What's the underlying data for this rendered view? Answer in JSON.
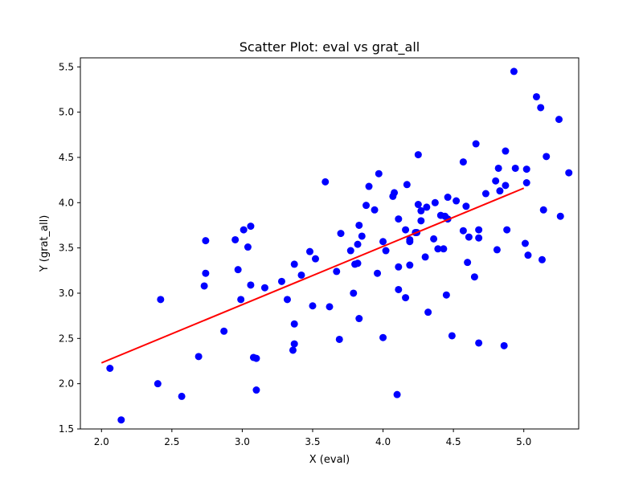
{
  "chart_data": {
    "type": "scatter",
    "title": "Scatter Plot: eval vs grat_all",
    "xlabel": "X (eval)",
    "ylabel": "Y (grat_all)",
    "xlim": [
      1.85,
      5.39
    ],
    "ylim": [
      1.5,
      5.6
    ],
    "x_ticks": [
      2.0,
      2.5,
      3.0,
      3.5,
      4.0,
      4.5,
      5.0
    ],
    "x_tick_labels": [
      "2.0",
      "2.5",
      "3.0",
      "3.5",
      "4.0",
      "4.5",
      "5.0"
    ],
    "y_ticks": [
      1.5,
      2.0,
      2.5,
      3.0,
      3.5,
      4.0,
      4.5,
      5.0,
      5.5
    ],
    "y_tick_labels": [
      "1.5",
      "2.0",
      "2.5",
      "3.0",
      "3.5",
      "4.0",
      "4.5",
      "5.0",
      "5.5"
    ],
    "grid": false,
    "point_color": "#0000ff",
    "line_color": "#ff0000",
    "regression_line": {
      "x": [
        2.0,
        5.0
      ],
      "y": [
        2.23,
        4.16
      ]
    },
    "points": [
      [
        2.06,
        2.17
      ],
      [
        2.14,
        1.6
      ],
      [
        2.4,
        2.0
      ],
      [
        2.42,
        2.93
      ],
      [
        2.57,
        1.86
      ],
      [
        2.69,
        2.3
      ],
      [
        2.73,
        3.08
      ],
      [
        2.74,
        3.22
      ],
      [
        2.74,
        3.58
      ],
      [
        2.87,
        2.58
      ],
      [
        2.95,
        3.59
      ],
      [
        2.97,
        3.26
      ],
      [
        2.99,
        2.93
      ],
      [
        3.01,
        3.7
      ],
      [
        3.04,
        3.51
      ],
      [
        3.06,
        3.09
      ],
      [
        3.06,
        3.74
      ],
      [
        3.08,
        2.29
      ],
      [
        3.1,
        2.28
      ],
      [
        3.1,
        1.93
      ],
      [
        3.16,
        3.06
      ],
      [
        3.28,
        3.13
      ],
      [
        3.32,
        2.93
      ],
      [
        3.36,
        2.37
      ],
      [
        3.37,
        2.44
      ],
      [
        3.37,
        2.66
      ],
      [
        3.37,
        3.32
      ],
      [
        3.42,
        3.2
      ],
      [
        3.48,
        3.46
      ],
      [
        3.5,
        2.86
      ],
      [
        3.52,
        3.38
      ],
      [
        3.59,
        4.23
      ],
      [
        3.62,
        2.85
      ],
      [
        3.67,
        3.24
      ],
      [
        3.69,
        2.49
      ],
      [
        3.7,
        3.66
      ],
      [
        3.77,
        3.47
      ],
      [
        3.79,
        3.0
      ],
      [
        3.8,
        3.32
      ],
      [
        3.82,
        3.33
      ],
      [
        3.82,
        3.54
      ],
      [
        3.83,
        3.75
      ],
      [
        3.83,
        2.72
      ],
      [
        3.85,
        3.63
      ],
      [
        3.88,
        3.97
      ],
      [
        3.9,
        4.18
      ],
      [
        3.94,
        3.92
      ],
      [
        3.96,
        3.22
      ],
      [
        3.97,
        4.32
      ],
      [
        4.0,
        3.57
      ],
      [
        4.0,
        2.51
      ],
      [
        4.02,
        3.47
      ],
      [
        4.07,
        4.07
      ],
      [
        4.08,
        4.11
      ],
      [
        4.1,
        1.88
      ],
      [
        4.11,
        3.82
      ],
      [
        4.11,
        3.29
      ],
      [
        4.11,
        3.04
      ],
      [
        4.16,
        2.95
      ],
      [
        4.16,
        3.7
      ],
      [
        4.17,
        4.2
      ],
      [
        4.19,
        3.57
      ],
      [
        4.19,
        3.59
      ],
      [
        4.19,
        3.31
      ],
      [
        4.23,
        3.67
      ],
      [
        4.24,
        3.67
      ],
      [
        4.25,
        4.53
      ],
      [
        4.25,
        3.98
      ],
      [
        4.27,
        3.91
      ],
      [
        4.27,
        3.8
      ],
      [
        4.3,
        3.4
      ],
      [
        4.31,
        3.95
      ],
      [
        4.32,
        2.79
      ],
      [
        4.36,
        3.6
      ],
      [
        4.37,
        4.0
      ],
      [
        4.39,
        3.49
      ],
      [
        4.41,
        3.86
      ],
      [
        4.43,
        3.49
      ],
      [
        4.44,
        3.85
      ],
      [
        4.45,
        2.98
      ],
      [
        4.46,
        3.82
      ],
      [
        4.46,
        4.06
      ],
      [
        4.49,
        2.53
      ],
      [
        4.52,
        4.02
      ],
      [
        4.57,
        3.69
      ],
      [
        4.57,
        4.45
      ],
      [
        4.59,
        3.96
      ],
      [
        4.6,
        3.34
      ],
      [
        4.61,
        3.62
      ],
      [
        4.65,
        3.18
      ],
      [
        4.66,
        4.65
      ],
      [
        4.68,
        3.7
      ],
      [
        4.68,
        3.61
      ],
      [
        4.68,
        2.45
      ],
      [
        4.73,
        4.1
      ],
      [
        4.8,
        4.24
      ],
      [
        4.81,
        3.48
      ],
      [
        4.82,
        4.38
      ],
      [
        4.83,
        4.13
      ],
      [
        4.86,
        2.42
      ],
      [
        4.87,
        4.57
      ],
      [
        4.87,
        4.19
      ],
      [
        4.88,
        3.7
      ],
      [
        4.93,
        5.45
      ],
      [
        4.94,
        4.38
      ],
      [
        5.01,
        3.55
      ],
      [
        5.02,
        4.37
      ],
      [
        5.02,
        4.22
      ],
      [
        5.03,
        3.42
      ],
      [
        5.09,
        5.17
      ],
      [
        5.12,
        5.05
      ],
      [
        5.13,
        3.37
      ],
      [
        5.14,
        3.92
      ],
      [
        5.16,
        4.51
      ],
      [
        5.25,
        4.92
      ],
      [
        5.26,
        3.85
      ],
      [
        5.32,
        4.33
      ]
    ]
  }
}
